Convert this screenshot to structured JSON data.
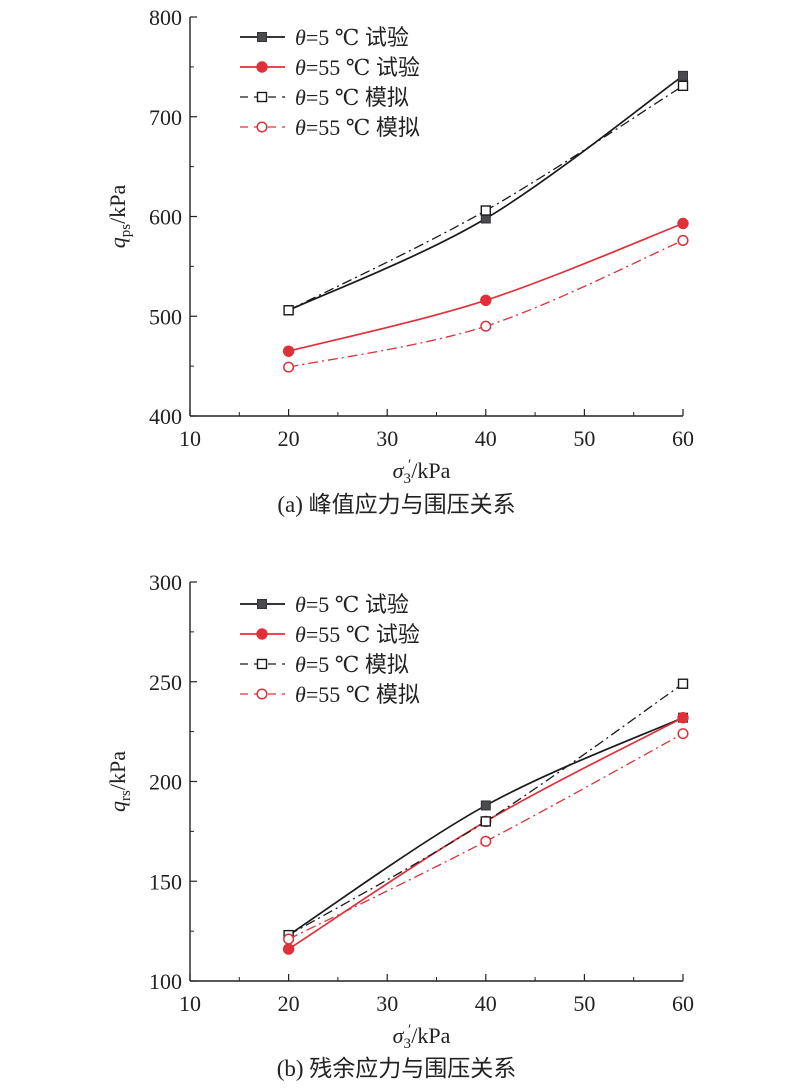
{
  "chart_data": [
    {
      "type": "line",
      "caption": "(a) 峰值应力与围压关系",
      "xlabel": "σ3′/kPa",
      "ylabel": "qps/kPa",
      "xlim": [
        10,
        60
      ],
      "ylim": [
        400,
        800
      ],
      "xticks": [
        "10",
        "20",
        "30",
        "40",
        "50",
        "60"
      ],
      "yticks": [
        "400",
        "500",
        "600",
        "700",
        "800"
      ],
      "x": [
        20,
        40,
        60
      ],
      "series": [
        {
          "name": "θ=5 ℃ 试验",
          "color": "#1a1a1a",
          "style": "solid",
          "marker": "filled-square",
          "values": [
            506,
            598,
            741
          ]
        },
        {
          "name": "θ=55 ℃ 试验",
          "color": "#e0303a",
          "style": "solid",
          "marker": "filled-circle",
          "values": [
            465,
            516,
            593
          ]
        },
        {
          "name": "θ=5 ℃ 模拟",
          "color": "#1a1a1a",
          "style": "dashdot",
          "marker": "open-square",
          "values": [
            506,
            606,
            731
          ]
        },
        {
          "name": "θ=55 ℃ 模拟",
          "color": "#e0303a",
          "style": "dashdot",
          "marker": "open-circle",
          "values": [
            449,
            490,
            576
          ]
        }
      ]
    },
    {
      "type": "line",
      "caption": "(b) 残余应力与围压关系",
      "xlabel": "σ3′/kPa",
      "ylabel": "qrs/kPa",
      "xlim": [
        10,
        60
      ],
      "ylim": [
        100,
        300
      ],
      "xticks": [
        "10",
        "20",
        "30",
        "40",
        "50",
        "60"
      ],
      "yticks": [
        "100",
        "150",
        "200",
        "250",
        "300"
      ],
      "x": [
        20,
        40,
        60
      ],
      "series": [
        {
          "name": "θ=5 ℃ 试验",
          "color": "#1a1a1a",
          "style": "solid",
          "marker": "filled-square",
          "values": [
            123,
            188,
            232
          ]
        },
        {
          "name": "θ=55 ℃ 试验",
          "color": "#e0303a",
          "style": "solid",
          "marker": "filled-circle",
          "values": [
            116,
            180,
            232
          ]
        },
        {
          "name": "θ=5 ℃ 模拟",
          "color": "#1a1a1a",
          "style": "dashdot",
          "marker": "open-square",
          "values": [
            123,
            180,
            249
          ]
        },
        {
          "name": "θ=55 ℃ 模拟",
          "color": "#e0303a",
          "style": "dashdot",
          "marker": "open-circle",
          "values": [
            121,
            170,
            224
          ]
        }
      ]
    }
  ]
}
